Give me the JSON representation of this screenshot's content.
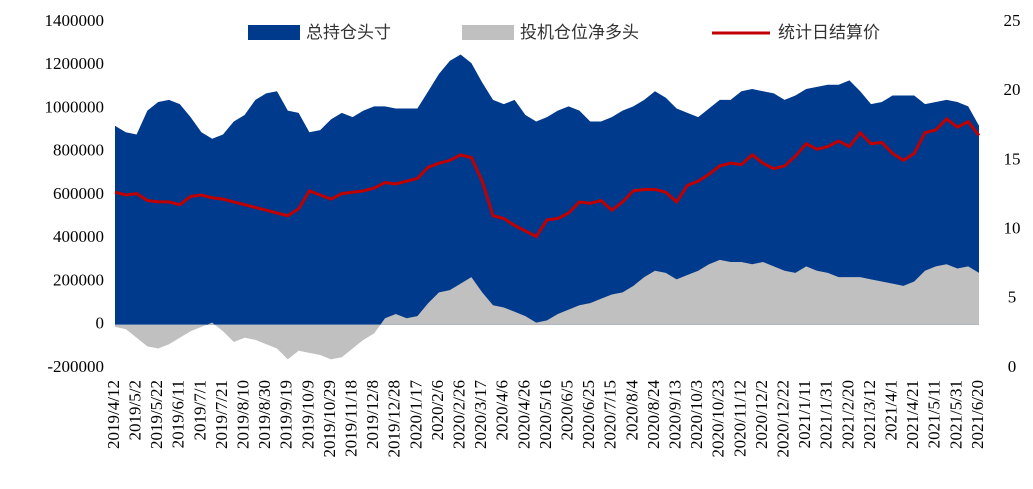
{
  "chart_data": {
    "type": "area-line",
    "categories": [
      "2019/4/12",
      null,
      "2019/5/2",
      null,
      "2019/5/22",
      null,
      "2019/6/11",
      null,
      "2019/7/1",
      null,
      "2019/7/21",
      null,
      "2019/8/10",
      null,
      "2019/8/30",
      null,
      "2019/9/19",
      null,
      "2019/10/9",
      null,
      "2019/10/29",
      null,
      "2019/11/18",
      null,
      "2019/12/8",
      null,
      "2019/12/28",
      null,
      "2020/1/17",
      null,
      "2020/2/6",
      null,
      "2020/2/26",
      null,
      "2020/3/17",
      null,
      "2020/4/6",
      null,
      "2020/4/26",
      null,
      "2020/5/16",
      null,
      "2020/6/5",
      null,
      "2020/6/25",
      null,
      "2020/7/15",
      null,
      "2020/8/4",
      null,
      "2020/8/24",
      null,
      "2020/9/13",
      null,
      "2020/10/3",
      null,
      "2020/10/23",
      null,
      "2020/11/12",
      null,
      "2020/12/2",
      null,
      "2020/12/22",
      null,
      "2021/1/11",
      null,
      "2021/1/31",
      null,
      "2021/2/20",
      null,
      "2021/3/12",
      null,
      "2021/4/1",
      null,
      "2021/4/21",
      null,
      "2021/5/11",
      null,
      "2021/5/31",
      null,
      "2021/6/20"
    ],
    "series": [
      {
        "name": "总持仓头寸",
        "color": "#003a8c",
        "kind": "area",
        "axis": "y",
        "values": [
          920000,
          890000,
          880000,
          990000,
          1030000,
          1040000,
          1020000,
          960000,
          890000,
          860000,
          880000,
          940000,
          970000,
          1040000,
          1070000,
          1080000,
          990000,
          980000,
          890000,
          900000,
          950000,
          980000,
          960000,
          990000,
          1010000,
          1010000,
          1000000,
          1000000,
          1000000,
          1080000,
          1160000,
          1220000,
          1250000,
          1210000,
          1120000,
          1040000,
          1020000,
          1040000,
          970000,
          940000,
          960000,
          990000,
          1010000,
          990000,
          940000,
          940000,
          960000,
          990000,
          1010000,
          1040000,
          1080000,
          1050000,
          1000000,
          980000,
          960000,
          1000000,
          1040000,
          1040000,
          1080000,
          1090000,
          1080000,
          1070000,
          1040000,
          1060000,
          1090000,
          1100000,
          1110000,
          1110000,
          1130000,
          1080000,
          1020000,
          1030000,
          1060000,
          1060000,
          1060000,
          1020000,
          1030000,
          1040000,
          1030000,
          1010000,
          920000
        ]
      },
      {
        "name": "投机仓位净多头",
        "color": "#c0c0c0",
        "kind": "area",
        "axis": "y",
        "values": [
          -10000,
          -20000,
          -60000,
          -100000,
          -110000,
          -90000,
          -60000,
          -30000,
          -10000,
          10000,
          -30000,
          -80000,
          -60000,
          -70000,
          -90000,
          -110000,
          -160000,
          -120000,
          -130000,
          -140000,
          -160000,
          -150000,
          -110000,
          -70000,
          -40000,
          30000,
          50000,
          30000,
          40000,
          100000,
          150000,
          160000,
          190000,
          220000,
          150000,
          90000,
          80000,
          60000,
          40000,
          10000,
          20000,
          50000,
          70000,
          90000,
          100000,
          120000,
          140000,
          150000,
          180000,
          220000,
          250000,
          240000,
          210000,
          230000,
          250000,
          280000,
          300000,
          290000,
          290000,
          280000,
          290000,
          270000,
          250000,
          240000,
          270000,
          250000,
          240000,
          220000,
          220000,
          220000,
          210000,
          200000,
          190000,
          180000,
          200000,
          250000,
          270000,
          280000,
          260000,
          270000,
          240000
        ]
      },
      {
        "name": "统计日结算价",
        "color": "#c00000",
        "kind": "line",
        "axis": "y2",
        "values": [
          12.7,
          12.5,
          12.6,
          12.1,
          12.0,
          12.0,
          11.8,
          12.4,
          12.5,
          12.3,
          12.2,
          12.0,
          11.8,
          11.6,
          11.4,
          11.2,
          11.0,
          11.5,
          12.8,
          12.5,
          12.2,
          12.6,
          12.7,
          12.8,
          13.0,
          13.4,
          13.3,
          13.5,
          13.7,
          14.5,
          14.8,
          15.0,
          15.4,
          15.2,
          13.5,
          11.0,
          10.8,
          10.3,
          9.9,
          9.5,
          10.7,
          10.8,
          11.2,
          12.0,
          11.9,
          12.1,
          11.4,
          12.0,
          12.8,
          12.9,
          12.9,
          12.7,
          12.0,
          13.2,
          13.5,
          14.0,
          14.6,
          14.8,
          14.7,
          15.4,
          14.8,
          14.4,
          14.6,
          15.3,
          16.2,
          15.8,
          16.0,
          16.4,
          16.0,
          17.0,
          16.2,
          16.3,
          15.5,
          15.0,
          15.5,
          17.0,
          17.2,
          18.0,
          17.4,
          17.8,
          16.8
        ]
      }
    ],
    "ylim": [
      -200000,
      1400000
    ],
    "yticks": [
      -200000,
      0,
      200000,
      400000,
      600000,
      800000,
      1000000,
      1200000,
      1400000
    ],
    "y2lim": [
      0,
      25
    ],
    "y2ticks": [
      0,
      5,
      10,
      15,
      20,
      25
    ],
    "grid": false,
    "legend": "top"
  }
}
